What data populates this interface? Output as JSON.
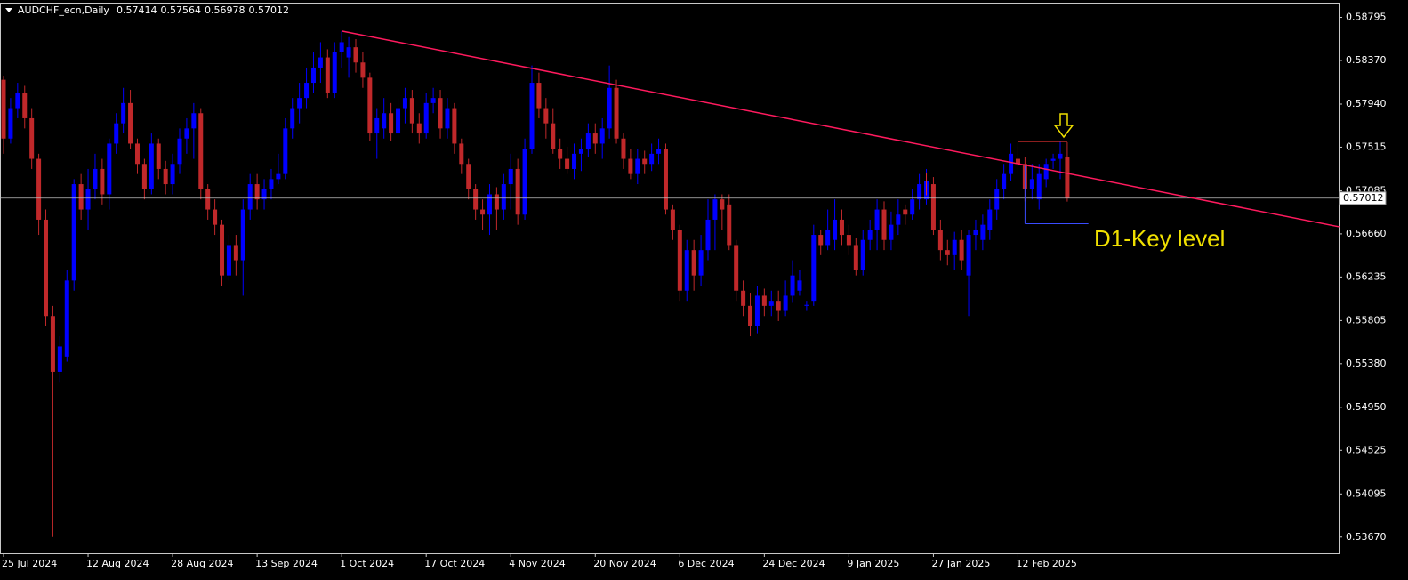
{
  "chart_data": {
    "type": "candlestick",
    "symbol": "AUDCHF_ecn,Daily",
    "categories": [
      "25 Jul 2024",
      null,
      null,
      null,
      null,
      null,
      null,
      null,
      null,
      null,
      null,
      null,
      "12 Aug 2024",
      null,
      null,
      null,
      null,
      null,
      null,
      null,
      null,
      null,
      null,
      null,
      "28 Aug 2024",
      null,
      null,
      null,
      null,
      null,
      null,
      null,
      null,
      null,
      null,
      null,
      "13 Sep 2024",
      null,
      null,
      null,
      null,
      null,
      null,
      null,
      null,
      null,
      null,
      null,
      "1 Oct 2024",
      null,
      null,
      null,
      null,
      null,
      null,
      null,
      null,
      null,
      null,
      null,
      "17 Oct 2024",
      null,
      null,
      null,
      null,
      null,
      null,
      null,
      null,
      null,
      null,
      null,
      "4 Nov 2024",
      null,
      null,
      null,
      null,
      null,
      null,
      null,
      null,
      null,
      null,
      null,
      "20 Nov 2024",
      null,
      null,
      null,
      null,
      null,
      null,
      null,
      null,
      null,
      null,
      null,
      "6 Dec 2024",
      null,
      null,
      null,
      null,
      null,
      null,
      null,
      null,
      null,
      null,
      null,
      "24 Dec 2024",
      null,
      null,
      null,
      null,
      null,
      null,
      null,
      null,
      null,
      null,
      null,
      "9 Jan 2025",
      null,
      null,
      null,
      null,
      null,
      null,
      null,
      null,
      null,
      null,
      null,
      "27 Jan 2025",
      null,
      null,
      null,
      null,
      null,
      null,
      null,
      null,
      null,
      null,
      null,
      "12 Feb 2025",
      null,
      null,
      null,
      null,
      null,
      null,
      null
    ],
    "series": {
      "up_color": "#0000ff",
      "down_color": "#c0282a",
      "open": [
        0.5818,
        0.576,
        0.579,
        0.5805,
        0.578,
        0.574,
        0.568,
        0.5585,
        0.553,
        0.5545,
        0.562,
        0.5715,
        0.569,
        0.571,
        0.573,
        0.5705,
        0.5755,
        0.5775,
        0.5795,
        0.5755,
        0.5735,
        0.571,
        0.5755,
        0.573,
        0.5715,
        0.5735,
        0.576,
        0.577,
        0.5785,
        0.571,
        0.569,
        0.5675,
        0.5625,
        0.5655,
        0.564,
        0.569,
        0.5715,
        0.57,
        0.571,
        0.572,
        0.5725,
        0.577,
        0.579,
        0.58,
        0.5815,
        0.583,
        0.584,
        0.5805,
        0.5845,
        0.584,
        0.585,
        0.5835,
        0.582,
        0.5765,
        0.577,
        0.5785,
        0.5765,
        0.579,
        0.58,
        0.5775,
        0.5765,
        0.5795,
        0.58,
        0.577,
        0.579,
        0.5755,
        0.5735,
        0.571,
        0.569,
        0.5685,
        0.5705,
        0.569,
        0.5715,
        0.573,
        0.5685,
        0.575,
        0.5815,
        0.579,
        0.5775,
        0.575,
        0.574,
        0.573,
        0.5745,
        0.575,
        0.5765,
        0.5755,
        0.577,
        0.581,
        0.576,
        0.574,
        0.5725,
        0.574,
        0.5735,
        0.5745,
        0.575,
        0.569,
        0.567,
        0.561,
        0.565,
        0.5625,
        0.565,
        0.568,
        0.57,
        0.5695,
        0.5655,
        0.561,
        0.5595,
        0.5575,
        0.5605,
        0.5595,
        0.56,
        0.559,
        0.5605,
        0.561,
        0.5595,
        0.56,
        0.5665,
        0.5655,
        0.566,
        0.568,
        0.5665,
        0.5655,
        0.563,
        0.566,
        0.567,
        0.569,
        0.566,
        0.5675,
        0.569,
        0.5685,
        0.57,
        0.57,
        0.5715,
        0.567,
        0.565,
        0.5645,
        0.566,
        0.5625,
        0.5665,
        0.566,
        0.567,
        0.569,
        0.571,
        0.5725,
        0.574,
        0.5735,
        0.571,
        0.57,
        0.572,
        0.5738,
        0.574,
        0.57414
      ],
      "high": [
        0.5822,
        0.58,
        0.5815,
        0.5812,
        0.579,
        0.5745,
        0.569,
        0.5595,
        0.5565,
        0.563,
        0.572,
        0.5725,
        0.573,
        0.5745,
        0.574,
        0.576,
        0.5785,
        0.581,
        0.5808,
        0.576,
        0.574,
        0.5765,
        0.576,
        0.5738,
        0.5745,
        0.577,
        0.578,
        0.5795,
        0.579,
        0.5715,
        0.57,
        0.568,
        0.5665,
        0.5665,
        0.57,
        0.5725,
        0.5725,
        0.572,
        0.573,
        0.5745,
        0.578,
        0.58,
        0.5815,
        0.583,
        0.5845,
        0.5855,
        0.5848,
        0.5855,
        0.5866,
        0.586,
        0.5858,
        0.5845,
        0.5825,
        0.579,
        0.58,
        0.5795,
        0.58,
        0.581,
        0.5808,
        0.5785,
        0.5805,
        0.581,
        0.5808,
        0.58,
        0.5795,
        0.576,
        0.574,
        0.5715,
        0.57,
        0.5715,
        0.5712,
        0.5725,
        0.5745,
        0.574,
        0.576,
        0.5832,
        0.5825,
        0.58,
        0.579,
        0.576,
        0.5752,
        0.5755,
        0.576,
        0.5775,
        0.5775,
        0.578,
        0.5832,
        0.5818,
        0.5765,
        0.575,
        0.575,
        0.5748,
        0.5755,
        0.576,
        0.5755,
        0.5695,
        0.5675,
        0.566,
        0.566,
        0.5665,
        0.57,
        0.5705,
        0.5705,
        0.5705,
        0.566,
        0.562,
        0.5608,
        0.5615,
        0.5612,
        0.561,
        0.561,
        0.562,
        0.564,
        0.563,
        0.56,
        0.5675,
        0.567,
        0.569,
        0.57,
        0.569,
        0.5675,
        0.5662,
        0.567,
        0.568,
        0.57,
        0.5698,
        0.5688,
        0.57,
        0.5695,
        0.571,
        0.5725,
        0.573,
        0.5722,
        0.568,
        0.566,
        0.5668,
        0.567,
        0.567,
        0.568,
        0.5685,
        0.57,
        0.572,
        0.5735,
        0.5755,
        0.5752,
        0.5742,
        0.5735,
        0.5735,
        0.574,
        0.5745,
        0.5758,
        0.57564
      ],
      "low": [
        0.5745,
        0.5755,
        0.578,
        0.577,
        0.573,
        0.5665,
        0.5575,
        0.5367,
        0.552,
        0.554,
        0.561,
        0.568,
        0.567,
        0.57,
        0.5695,
        0.569,
        0.5745,
        0.5765,
        0.575,
        0.5725,
        0.57,
        0.5705,
        0.572,
        0.5705,
        0.5705,
        0.5725,
        0.5745,
        0.574,
        0.57,
        0.568,
        0.5665,
        0.5615,
        0.562,
        0.5625,
        0.5605,
        0.568,
        0.569,
        0.569,
        0.57,
        0.5715,
        0.572,
        0.576,
        0.5775,
        0.579,
        0.5805,
        0.5815,
        0.58,
        0.58,
        0.583,
        0.582,
        0.5825,
        0.581,
        0.5758,
        0.574,
        0.576,
        0.5758,
        0.576,
        0.5775,
        0.5765,
        0.5755,
        0.576,
        0.5785,
        0.576,
        0.576,
        0.5745,
        0.5725,
        0.57,
        0.568,
        0.567,
        0.5665,
        0.567,
        0.568,
        0.569,
        0.5675,
        0.568,
        0.5745,
        0.578,
        0.576,
        0.5745,
        0.573,
        0.5725,
        0.572,
        0.5728,
        0.5742,
        0.5745,
        0.574,
        0.576,
        0.5755,
        0.573,
        0.572,
        0.5715,
        0.5725,
        0.5728,
        0.5735,
        0.5685,
        0.566,
        0.56,
        0.56,
        0.561,
        0.5615,
        0.564,
        0.565,
        0.567,
        0.565,
        0.56,
        0.5585,
        0.5565,
        0.5568,
        0.5585,
        0.5585,
        0.558,
        0.5585,
        0.5598,
        0.5605,
        0.559,
        0.5595,
        0.5645,
        0.565,
        0.565,
        0.5655,
        0.5645,
        0.5625,
        0.5625,
        0.565,
        0.565,
        0.565,
        0.565,
        0.5665,
        0.5675,
        0.568,
        0.569,
        0.5695,
        0.5665,
        0.564,
        0.5635,
        0.563,
        0.563,
        0.5585,
        0.565,
        0.565,
        0.566,
        0.568,
        0.57,
        0.5718,
        0.5725,
        0.5698,
        0.57,
        0.569,
        0.5712,
        0.573,
        0.572,
        0.56978
      ],
      "close": [
        0.576,
        0.579,
        0.5805,
        0.578,
        0.574,
        0.568,
        0.5585,
        0.553,
        0.5555,
        0.562,
        0.5715,
        0.569,
        0.571,
        0.573,
        0.5705,
        0.5755,
        0.5775,
        0.5795,
        0.5755,
        0.5735,
        0.571,
        0.5755,
        0.573,
        0.5715,
        0.5735,
        0.576,
        0.577,
        0.5785,
        0.571,
        0.569,
        0.5675,
        0.5625,
        0.5655,
        0.564,
        0.569,
        0.5715,
        0.57,
        0.571,
        0.572,
        0.5725,
        0.577,
        0.579,
        0.58,
        0.5815,
        0.583,
        0.584,
        0.5805,
        0.5845,
        0.5855,
        0.585,
        0.5835,
        0.582,
        0.5765,
        0.578,
        0.5785,
        0.5765,
        0.579,
        0.58,
        0.5775,
        0.5765,
        0.5795,
        0.58,
        0.577,
        0.579,
        0.5755,
        0.5735,
        0.571,
        0.569,
        0.5685,
        0.5705,
        0.569,
        0.5715,
        0.573,
        0.5685,
        0.575,
        0.5815,
        0.579,
        0.5775,
        0.575,
        0.574,
        0.573,
        0.5745,
        0.575,
        0.5765,
        0.5755,
        0.577,
        0.581,
        0.576,
        0.574,
        0.5725,
        0.574,
        0.5735,
        0.5745,
        0.575,
        0.569,
        0.567,
        0.561,
        0.565,
        0.5625,
        0.565,
        0.568,
        0.57,
        0.569,
        0.5655,
        0.561,
        0.5595,
        0.5575,
        0.5605,
        0.5595,
        0.56,
        0.559,
        0.5605,
        0.5625,
        0.562,
        0.5596,
        0.5665,
        0.5655,
        0.567,
        0.568,
        0.5665,
        0.5655,
        0.563,
        0.566,
        0.567,
        0.569,
        0.566,
        0.5675,
        0.5685,
        0.5685,
        0.57,
        0.5715,
        0.5718,
        0.567,
        0.565,
        0.5645,
        0.566,
        0.564,
        0.5665,
        0.567,
        0.5675,
        0.569,
        0.571,
        0.5725,
        0.5745,
        0.5735,
        0.571,
        0.572,
        0.5725,
        0.5735,
        0.574,
        0.5745,
        0.57012
      ]
    },
    "ylim": [
      0.5351,
      0.5894
    ],
    "yticks": [
      0.58795,
      {
        "value": 0.5837,
        "label": "0.58370"
      },
      {
        "value": 0.5794,
        "label": "0.57940"
      },
      0.57515,
      0.57085,
      {
        "value": 0.5666,
        "label": "0.56660"
      },
      0.56235,
      0.55805,
      {
        "value": 0.5538,
        "label": "0.55380"
      },
      {
        "value": 0.5495,
        "label": "0.54950"
      },
      0.54525,
      0.54095,
      {
        "value": 0.5367,
        "label": "0.53670"
      }
    ],
    "trendline": {
      "start": [
        48,
        0.5866
      ],
      "end": [
        189.6,
        0.5673
      ],
      "color": "#ff1a5e"
    },
    "levels": [
      {
        "from": 131,
        "to": 148,
        "price": 0.5726,
        "color": "#e03030"
      },
      {
        "from": 144,
        "to": 151,
        "price": 0.5757,
        "color": "#e03030"
      },
      {
        "from": 145,
        "to": 154,
        "price": 0.5676,
        "color": "#3a4cff"
      }
    ],
    "annotation": "D1-Key level"
  }
}
